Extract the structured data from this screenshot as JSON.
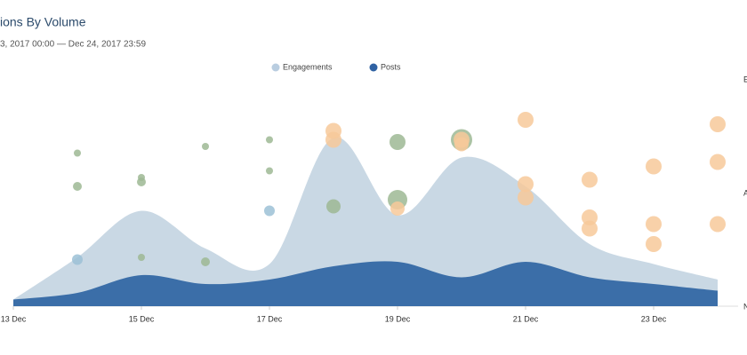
{
  "chart_data": [
    {
      "type": "area",
      "title": "ions By Volume",
      "subtitle": "3, 2017 00:00 — Dec 24, 2017 23:59",
      "right_labels": [
        "E",
        "A",
        "N"
      ],
      "x": [
        13,
        14,
        15,
        16,
        17,
        18,
        19,
        20,
        21,
        22,
        23,
        24
      ],
      "xlim": [
        13,
        24
      ],
      "xticks": [
        {
          "value": 13,
          "label": "13 Dec"
        },
        {
          "value": 15,
          "label": "15 Dec"
        },
        {
          "value": 17,
          "label": "17 Dec"
        },
        {
          "value": 19,
          "label": "19 Dec"
        },
        {
          "value": 21,
          "label": "21 Dec"
        },
        {
          "value": 23,
          "label": "23 Dec"
        }
      ],
      "ylim": [
        0,
        100
      ],
      "series": [
        {
          "name": "Engagements",
          "color": "#c9d8e4",
          "legend_color": "#b9cde0",
          "values": [
            3,
            22,
            43,
            26,
            19,
            76,
            41,
            67,
            54,
            28,
            19,
            12
          ]
        },
        {
          "name": "Posts",
          "color": "#3b6ea8",
          "legend_color": "#2f62a3",
          "values": [
            3,
            6,
            14,
            10,
            12,
            18,
            20,
            13,
            20,
            13,
            10,
            7
          ]
        }
      ]
    },
    {
      "type": "bubble",
      "xlim": [
        13,
        24
      ],
      "ylim": [
        0,
        100
      ],
      "series": [
        {
          "color": "#9db894",
          "x": [
            14,
            14,
            15,
            15,
            15,
            16,
            16,
            17,
            17,
            18,
            19,
            19,
            20
          ],
          "values": [
            69,
            54,
            58,
            56,
            22,
            72,
            20,
            75,
            61,
            45,
            74,
            48,
            75
          ],
          "sizes": [
            4,
            5,
            4,
            5,
            4,
            4,
            5,
            4,
            4,
            8,
            9,
            11,
            12
          ]
        },
        {
          "color": "#9cc1d6",
          "x": [
            14,
            17
          ],
          "values": [
            21,
            43
          ],
          "sizes": [
            6,
            6
          ]
        },
        {
          "color": "#f7c99a",
          "x": [
            18,
            18,
            19,
            20,
            20,
            21,
            21,
            21,
            22,
            22,
            22,
            23,
            23,
            23,
            24,
            24,
            24
          ],
          "values": [
            79,
            75,
            44,
            75,
            73,
            84,
            55,
            49,
            57,
            40,
            35,
            63,
            37,
            28,
            82,
            65,
            37
          ],
          "sizes": [
            9,
            9,
            8,
            9,
            8,
            9,
            9,
            9,
            9,
            9,
            9,
            9,
            9,
            9,
            9,
            9,
            9
          ]
        }
      ]
    }
  ]
}
